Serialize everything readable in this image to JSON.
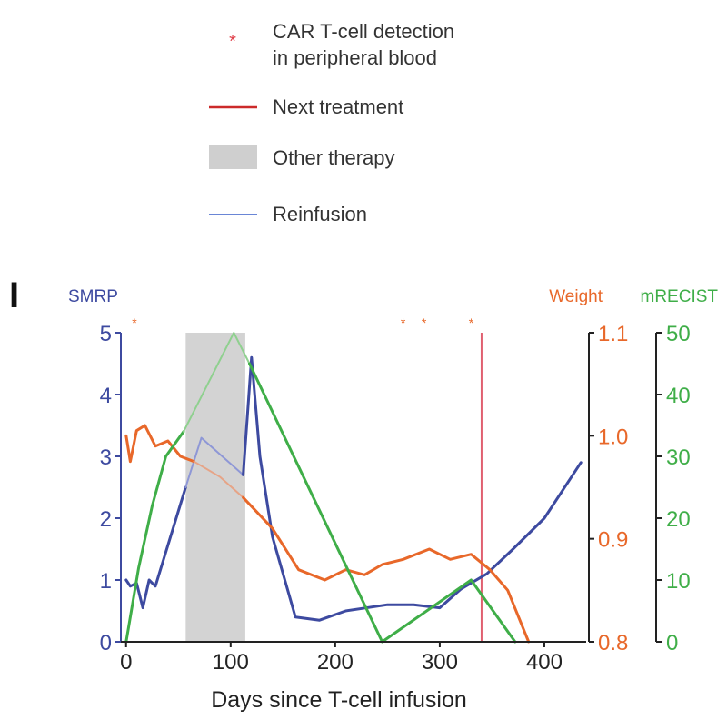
{
  "chart_data": {
    "type": "line",
    "panel_label": "I",
    "xlabel": "Days since T-cell infusion",
    "xlim": [
      -5,
      440
    ],
    "x_ticks": [
      0,
      100,
      200,
      300,
      400
    ],
    "legend": {
      "placement": "top-center",
      "items": [
        {
          "key": "detection",
          "symbol": "star",
          "label_lines": [
            "CAR T-cell detection",
            "in peripheral blood"
          ],
          "color": "#e0404a"
        },
        {
          "key": "next",
          "symbol": "line",
          "label_lines": [
            "Next treatment"
          ],
          "color": "#cc2a2a"
        },
        {
          "key": "other",
          "symbol": "box",
          "label_lines": [
            "Other therapy"
          ],
          "color": "#cfcfcf"
        },
        {
          "key": "reinfusion",
          "symbol": "line",
          "label_lines": [
            "Reinfusion"
          ],
          "color": "#6a86d6"
        }
      ]
    },
    "axes": {
      "left": {
        "label": "SMRP",
        "range": [
          0,
          5
        ],
        "ticks": [
          "0",
          "1",
          "2",
          "3",
          "4",
          "5"
        ],
        "color": "#3d4aa0"
      },
      "right1": {
        "label": "Weight",
        "range": [
          0.8,
          1.1
        ],
        "ticks": [
          "0.8",
          "0.9",
          "1.0",
          "1.1"
        ],
        "color": "#e8682a"
      },
      "right2": {
        "label": "mRECIST",
        "range": [
          0,
          50
        ],
        "ticks": [
          "0",
          "10",
          "20",
          "30",
          "40",
          "50"
        ],
        "color": "#3fae48"
      }
    },
    "other_therapy_range": [
      57,
      114
    ],
    "next_treatment_x": 340,
    "detection_x": [
      8,
      265,
      285,
      330
    ],
    "series": [
      {
        "key": "smrp_pre",
        "axis": "left",
        "color": "#3d4aa0",
        "width": 3,
        "points": [
          [
            0,
            1.0
          ],
          [
            4,
            0.9
          ],
          [
            10,
            0.95
          ],
          [
            16,
            0.55
          ],
          [
            22,
            1.0
          ],
          [
            28,
            0.9
          ],
          [
            57,
            2.5
          ]
        ]
      },
      {
        "key": "smrp_reinf",
        "axis": "left",
        "color": "#8e97d6",
        "width": 2,
        "points": [
          [
            57,
            2.5
          ],
          [
            72,
            3.3
          ],
          [
            112,
            2.7
          ]
        ]
      },
      {
        "key": "smrp_post",
        "axis": "left",
        "color": "#3d4aa0",
        "width": 3,
        "points": [
          [
            112,
            2.7
          ],
          [
            120,
            4.6
          ],
          [
            128,
            3.0
          ],
          [
            140,
            1.7
          ],
          [
            162,
            0.4
          ],
          [
            185,
            0.35
          ],
          [
            210,
            0.5
          ],
          [
            250,
            0.6
          ],
          [
            275,
            0.6
          ],
          [
            300,
            0.55
          ],
          [
            320,
            0.85
          ],
          [
            345,
            1.1
          ],
          [
            370,
            1.5
          ],
          [
            400,
            2.0
          ],
          [
            435,
            2.9
          ]
        ]
      },
      {
        "key": "weight_pre",
        "axis": "right1",
        "color": "#e8682a",
        "width": 3,
        "points": [
          [
            0,
            1.0
          ],
          [
            4,
            0.975
          ],
          [
            10,
            1.005
          ],
          [
            18,
            1.01
          ],
          [
            28,
            0.99
          ],
          [
            40,
            0.995
          ],
          [
            52,
            0.98
          ],
          [
            65,
            0.975
          ]
        ]
      },
      {
        "key": "weight_reinf",
        "axis": "right1",
        "color": "#e6a487",
        "width": 2,
        "points": [
          [
            65,
            0.975
          ],
          [
            90,
            0.96
          ],
          [
            112,
            0.94
          ]
        ]
      },
      {
        "key": "weight_post",
        "axis": "right1",
        "color": "#e8682a",
        "width": 3,
        "points": [
          [
            112,
            0.94
          ],
          [
            140,
            0.91
          ],
          [
            165,
            0.87
          ],
          [
            190,
            0.86
          ],
          [
            210,
            0.87
          ],
          [
            228,
            0.865
          ],
          [
            245,
            0.875
          ],
          [
            265,
            0.88
          ],
          [
            290,
            0.89
          ],
          [
            310,
            0.88
          ],
          [
            330,
            0.885
          ],
          [
            348,
            0.87
          ],
          [
            365,
            0.85
          ],
          [
            385,
            0.8
          ]
        ]
      },
      {
        "key": "mrecist_pre",
        "axis": "right2",
        "color": "#3fae48",
        "width": 3,
        "points": [
          [
            0,
            0
          ],
          [
            12,
            12
          ],
          [
            25,
            22
          ],
          [
            38,
            30
          ],
          [
            55,
            34
          ]
        ]
      },
      {
        "key": "mrecist_reinf",
        "axis": "right2",
        "color": "#8fd08f",
        "width": 2,
        "points": [
          [
            55,
            34
          ],
          [
            103,
            50
          ],
          [
            118,
            45
          ]
        ]
      },
      {
        "key": "mrecist_post",
        "axis": "right2",
        "color": "#3fae48",
        "width": 3,
        "points": [
          [
            118,
            45
          ],
          [
            245,
            0
          ],
          [
            330,
            10
          ],
          [
            372,
            0
          ]
        ]
      }
    ]
  }
}
